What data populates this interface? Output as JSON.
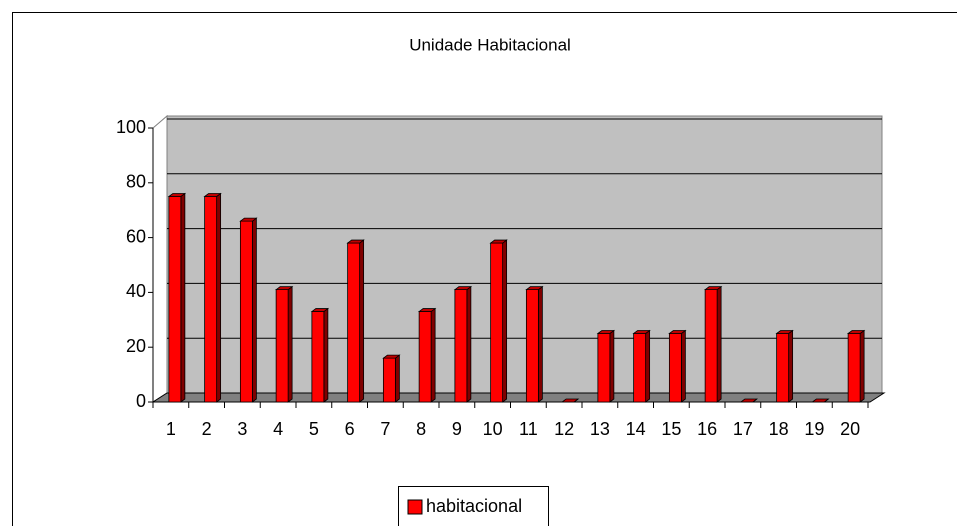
{
  "chart_data": {
    "type": "bar",
    "title": "Unidade Habitacional",
    "categories": [
      "1",
      "2",
      "3",
      "4",
      "5",
      "6",
      "7",
      "8",
      "9",
      "10",
      "11",
      "12",
      "13",
      "14",
      "15",
      "16",
      "17",
      "18",
      "19",
      "20"
    ],
    "series": [
      {
        "name": "habitacional",
        "color": "#ff0000",
        "values": [
          75,
          75,
          66,
          41,
          33,
          58,
          16,
          33,
          41,
          58,
          41,
          0,
          25,
          25,
          25,
          41,
          0,
          25,
          0,
          25
        ]
      }
    ],
    "ylim": [
      0,
      100
    ],
    "yticks": [
      0,
      20,
      40,
      60,
      80,
      100
    ],
    "grid": true,
    "legend": "bottom"
  }
}
